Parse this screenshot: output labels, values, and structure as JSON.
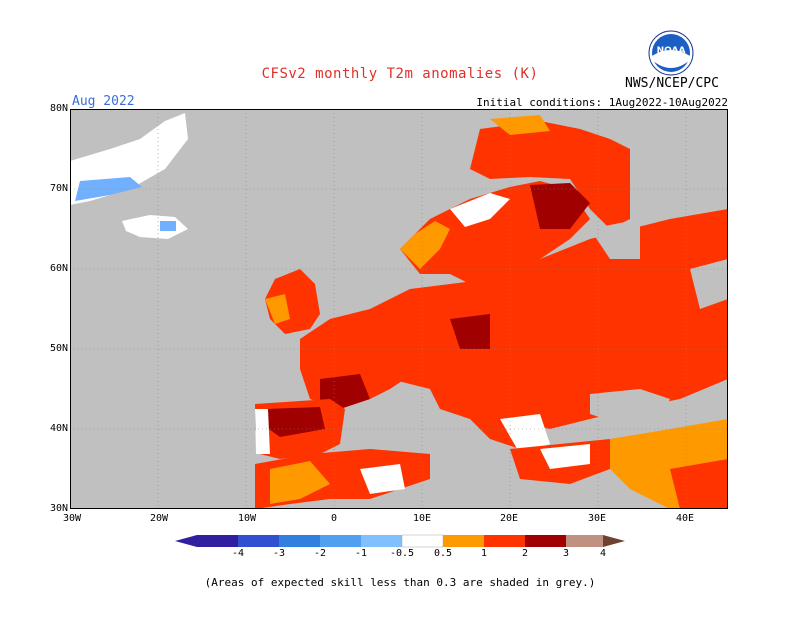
{
  "header": {
    "title": "CFSv2 monthly T2m anomalies (K)",
    "month": "Aug 2022",
    "initial_conditions": "Initial conditions: 1Aug2022-10Aug2022",
    "agency": "NWS/NCEP/CPC",
    "logo_text": "NOAA"
  },
  "map": {
    "lat_labels": [
      "80N",
      "70N",
      "60N",
      "50N",
      "40N",
      "30N"
    ],
    "lon_labels": [
      "30W",
      "20W",
      "10W",
      "0",
      "10E",
      "20E",
      "30E",
      "40E"
    ],
    "lat_range": [
      30,
      80
    ],
    "lon_range": [
      -30,
      45
    ],
    "grid": "dotted",
    "colors": {
      "land_skill_low": "#c0c0c0",
      "ocean_skill_low": "#c0c0c0",
      "neutral": "#ffffff",
      "warm_0_5_1": "#ff9900",
      "warm_1_2": "#ff3300",
      "warm_2_3": "#a00000",
      "cool_m1_m0_5": "#70b0ff"
    }
  },
  "legend": {
    "labels": [
      "-4",
      "-3",
      "-2",
      "-1",
      "-0.5",
      "0.5",
      "1",
      "2",
      "3",
      "4"
    ],
    "colors": [
      "#3020a0",
      "#3050d0",
      "#3080e0",
      "#50a0f0",
      "#80c0ff",
      "#ffffff",
      "#ff9900",
      "#ff3300",
      "#a00000",
      "#c09080",
      "#704030"
    ]
  },
  "footer": {
    "note": "(Areas of expected skill less than 0.3 are shaded in grey.)"
  }
}
